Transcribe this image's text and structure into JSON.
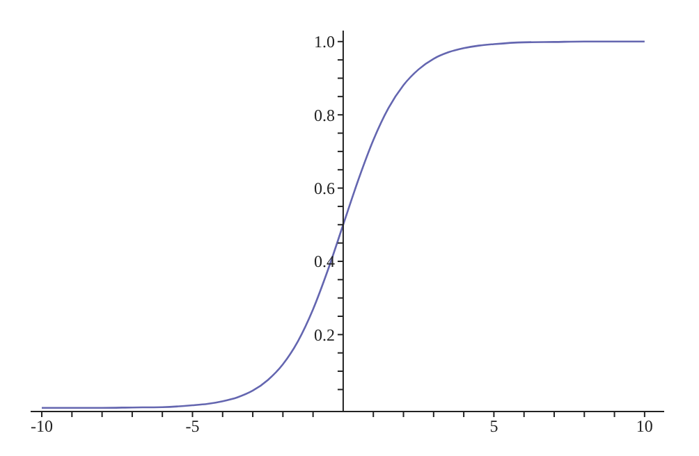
{
  "chart_data": {
    "type": "line",
    "color": "#6466b0",
    "marker": "none",
    "grid": false,
    "x": [
      -10,
      -9,
      -8,
      -7,
      -6,
      -5,
      -4.5,
      -4,
      -3.5,
      -3,
      -2.5,
      -2,
      -1.5,
      -1,
      -0.5,
      0,
      0.5,
      1,
      1.5,
      2,
      2.5,
      3,
      3.5,
      4,
      4.5,
      5,
      6,
      7,
      8,
      9,
      10
    ],
    "values": [
      0.0,
      0.0,
      0.0,
      0.001,
      0.002,
      0.007,
      0.011,
      0.018,
      0.029,
      0.047,
      0.076,
      0.119,
      0.182,
      0.269,
      0.378,
      0.5,
      0.622,
      0.731,
      0.818,
      0.881,
      0.924,
      0.953,
      0.971,
      0.982,
      0.989,
      0.993,
      0.998,
      0.999,
      1.0,
      1.0,
      1.0
    ],
    "xlim": [
      -10.37,
      10.65
    ],
    "ylim": [
      -0.01,
      1.03
    ],
    "xticks": [
      {
        "value": -10,
        "label": "-10"
      },
      {
        "value": -9,
        "label": null
      },
      {
        "value": -8,
        "label": null
      },
      {
        "value": -7,
        "label": null
      },
      {
        "value": -6,
        "label": null
      },
      {
        "value": -5,
        "label": "-5"
      },
      {
        "value": -4,
        "label": null
      },
      {
        "value": -3,
        "label": null
      },
      {
        "value": -2,
        "label": null
      },
      {
        "value": -1,
        "label": null
      },
      {
        "value": 1,
        "label": null
      },
      {
        "value": 2,
        "label": null
      },
      {
        "value": 3,
        "label": null
      },
      {
        "value": 4,
        "label": null
      },
      5,
      {
        "value": 6,
        "label": null
      },
      {
        "value": 7,
        "label": null
      },
      {
        "value": 8,
        "label": null
      },
      {
        "value": 9,
        "label": null
      },
      10
    ],
    "yticks": [
      {
        "value": 0.05,
        "label": null
      },
      {
        "value": 0.1,
        "label": null
      },
      {
        "value": 0.15,
        "label": null
      },
      0.2,
      {
        "value": 0.25,
        "label": null
      },
      {
        "value": 0.3,
        "label": null
      },
      {
        "value": 0.35,
        "label": null
      },
      0.4,
      {
        "value": 0.45,
        "label": null
      },
      {
        "value": 0.5,
        "label": null
      },
      {
        "value": 0.55,
        "label": null
      },
      0.6,
      {
        "value": 0.65,
        "label": null
      },
      {
        "value": 0.7,
        "label": null
      },
      {
        "value": 0.75,
        "label": null
      },
      0.8,
      {
        "value": 0.85,
        "label": null
      },
      {
        "value": 0.9,
        "label": null
      },
      {
        "value": 0.95,
        "label": null
      },
      {
        "value": 1,
        "label": "1.0"
      }
    ]
  }
}
